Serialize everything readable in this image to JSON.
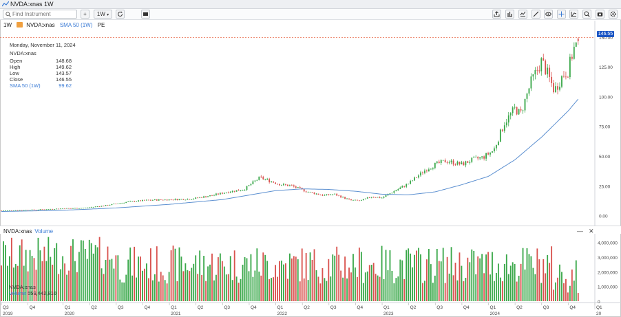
{
  "window": {
    "title": "NVDA:xnas 1W"
  },
  "toolbar": {
    "search_placeholder": "Find Instrument",
    "add_label": "+",
    "interval_label": "1W",
    "toolbar_icons": [
      "add-icon",
      "interval-icon",
      "refresh-icon",
      "chart-type-icon",
      "share-icon",
      "indicators-icon",
      "draw-icon",
      "trend-line-icon",
      "eye-icon",
      "crosshair-icon",
      "analysis-icon",
      "zoom-icon",
      "camera-icon",
      "settings-icon"
    ]
  },
  "legend": {
    "interval": "1W",
    "symbol": "NVDA:xnas",
    "sma": "SMA 50 (1W)",
    "pe": "PE"
  },
  "info_box": {
    "date": "Monday, November 11, 2024",
    "symbol": "NVDA:xnas",
    "rows": [
      {
        "label": "Open",
        "value": "148.68"
      },
      {
        "label": "High",
        "value": "149.62"
      },
      {
        "label": "Low",
        "value": "143.57"
      },
      {
        "label": "Close",
        "value": "146.55"
      }
    ],
    "sma_label": "SMA 50 (1W)",
    "sma_value": "99.62"
  },
  "last_price_label": "146.55",
  "volume_pane": {
    "title": "NVDA:xnas",
    "volume_label": "Volume",
    "info_symbol": "NVDA:xnas",
    "info_volume_label": "Volume",
    "info_volume_value": "559,442,810",
    "y_ticks": [
      "4,000,000",
      "3,000,000",
      "2,000,000",
      "1,000,000",
      "0"
    ]
  },
  "colors": {
    "up": "#3aa84a",
    "down": "#d9534f",
    "sma": "#5b8fd0",
    "last_price_line": "#e86a4a",
    "last_price_bg": "#1a55c4"
  },
  "chart_data": {
    "type": "candlestick",
    "title": "NVDA:xnas 1W",
    "ylabel": "",
    "ylim": [
      -6,
      158
    ],
    "y_ticks": [
      0,
      25,
      50,
      75,
      100,
      125,
      150
    ],
    "y_tick_labels": [
      "0.00",
      "25.00",
      "50.00",
      "75.00",
      "100.00",
      "125.00",
      "150.00"
    ],
    "x_range": [
      2019.42,
      2025.0
    ],
    "quarter_ticks": [
      {
        "t": 2019.42,
        "label": "Q3"
      },
      {
        "t": 2019.67,
        "label": "Q4"
      },
      {
        "t": 2020.0,
        "label": "Q1"
      },
      {
        "t": 2020.25,
        "label": "Q2"
      },
      {
        "t": 2020.5,
        "label": "Q3"
      },
      {
        "t": 2020.75,
        "label": "Q4"
      },
      {
        "t": 2021.0,
        "label": "Q1"
      },
      {
        "t": 2021.25,
        "label": "Q2"
      },
      {
        "t": 2021.5,
        "label": "Q3"
      },
      {
        "t": 2021.75,
        "label": "Q4"
      },
      {
        "t": 2022.0,
        "label": "Q1"
      },
      {
        "t": 2022.25,
        "label": "Q2"
      },
      {
        "t": 2022.5,
        "label": "Q3"
      },
      {
        "t": 2022.75,
        "label": "Q4"
      },
      {
        "t": 2023.0,
        "label": "Q1"
      },
      {
        "t": 2023.25,
        "label": "Q2"
      },
      {
        "t": 2023.5,
        "label": "Q3"
      },
      {
        "t": 2023.75,
        "label": "Q4"
      },
      {
        "t": 2024.0,
        "label": "Q1"
      },
      {
        "t": 2024.25,
        "label": "Q2"
      },
      {
        "t": 2024.5,
        "label": "Q3"
      },
      {
        "t": 2024.75,
        "label": "Q4"
      },
      {
        "t": 2025.0,
        "label": "Q1"
      }
    ],
    "year_ticks": [
      {
        "t": 2019.42,
        "label": "2019"
      },
      {
        "t": 2020.0,
        "label": "2020"
      },
      {
        "t": 2021.0,
        "label": "2021"
      },
      {
        "t": 2022.0,
        "label": "2022"
      },
      {
        "t": 2023.0,
        "label": "2023"
      },
      {
        "t": 2024.0,
        "label": "2024"
      },
      {
        "t": 2025.0,
        "label": "20"
      }
    ],
    "close_anchors": [
      [
        2019.42,
        4.2
      ],
      [
        2019.6,
        4.6
      ],
      [
        2019.8,
        5.2
      ],
      [
        2020.0,
        6.0
      ],
      [
        2020.2,
        6.5
      ],
      [
        2020.4,
        8.5
      ],
      [
        2020.6,
        11.5
      ],
      [
        2020.8,
        13.0
      ],
      [
        2021.0,
        13.5
      ],
      [
        2021.2,
        14.0
      ],
      [
        2021.4,
        17.0
      ],
      [
        2021.55,
        20.0
      ],
      [
        2021.7,
        22.0
      ],
      [
        2021.85,
        32.0
      ],
      [
        2021.95,
        29.0
      ],
      [
        2022.05,
        26.0
      ],
      [
        2022.15,
        25.0
      ],
      [
        2022.3,
        20.0
      ],
      [
        2022.45,
        17.0
      ],
      [
        2022.55,
        18.0
      ],
      [
        2022.7,
        13.0
      ],
      [
        2022.8,
        12.5
      ],
      [
        2022.9,
        16.0
      ],
      [
        2023.0,
        15.0
      ],
      [
        2023.1,
        20.0
      ],
      [
        2023.25,
        27.0
      ],
      [
        2023.4,
        38.0
      ],
      [
        2023.5,
        43.0
      ],
      [
        2023.6,
        46.0
      ],
      [
        2023.75,
        43.0
      ],
      [
        2023.85,
        47.0
      ],
      [
        2023.95,
        49.0
      ],
      [
        2024.05,
        55.0
      ],
      [
        2024.15,
        78.0
      ],
      [
        2024.25,
        90.0
      ],
      [
        2024.3,
        85.0
      ],
      [
        2024.4,
        112.0
      ],
      [
        2024.5,
        130.0
      ],
      [
        2024.55,
        120.0
      ],
      [
        2024.62,
        105.0
      ],
      [
        2024.7,
        118.0
      ],
      [
        2024.75,
        122.0
      ],
      [
        2024.8,
        140.0
      ],
      [
        2024.86,
        146.55
      ]
    ],
    "sma_anchors": [
      [
        2019.42,
        3.5
      ],
      [
        2020.0,
        4.5
      ],
      [
        2020.5,
        6.5
      ],
      [
        2021.0,
        9.5
      ],
      [
        2021.5,
        13.5
      ],
      [
        2022.0,
        21.0
      ],
      [
        2022.25,
        22.5
      ],
      [
        2022.5,
        22.0
      ],
      [
        2022.75,
        20.5
      ],
      [
        2023.0,
        18.0
      ],
      [
        2023.25,
        17.5
      ],
      [
        2023.5,
        20.0
      ],
      [
        2023.75,
        26.0
      ],
      [
        2024.0,
        33.0
      ],
      [
        2024.25,
        47.0
      ],
      [
        2024.5,
        66.0
      ],
      [
        2024.75,
        88.0
      ],
      [
        2024.86,
        99.62
      ]
    ],
    "volume_ylim": [
      0,
      4500000
    ],
    "volume_ticks": [
      0,
      1000000,
      2000000,
      3000000,
      4000000
    ],
    "last_volume": 559442810
  }
}
